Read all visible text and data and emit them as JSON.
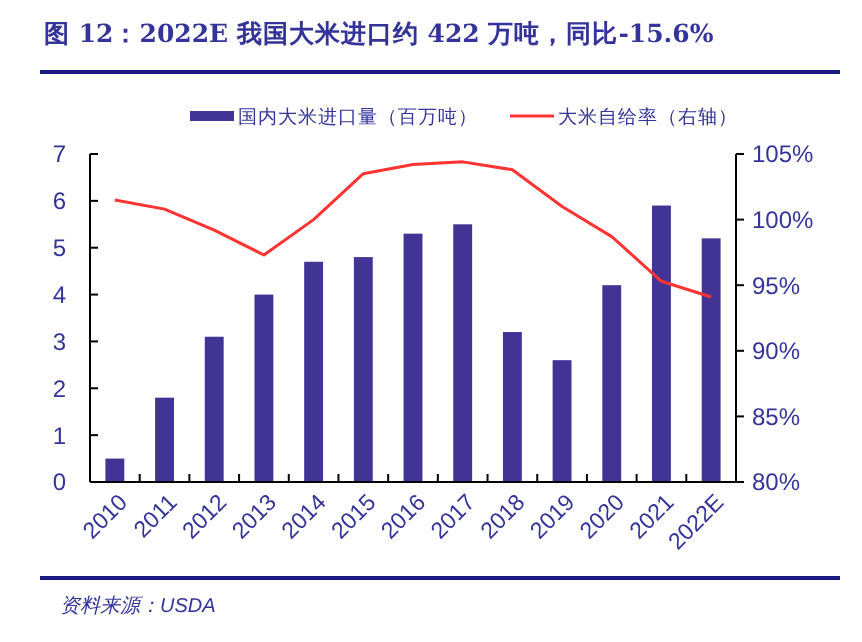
{
  "chart_data": {
    "type": "bar",
    "title": "图 12：2022E 我国大米进口约 422 万吨，同比-15.6%",
    "annotations": [
      "资料来源：USDA"
    ],
    "categories": [
      "2010",
      "2011",
      "2012",
      "2013",
      "2014",
      "2015",
      "2016",
      "2017",
      "2018",
      "2019",
      "2020",
      "2021",
      "2022E"
    ],
    "series": [
      {
        "name": "国内大米进口量（百万吨）",
        "color": "#413494",
        "values": [
          0.5,
          1.8,
          3.1,
          4.0,
          4.7,
          4.8,
          5.3,
          5.5,
          3.2,
          2.6,
          4.2,
          5.9,
          5.2
        ]
      },
      {
        "name": "大米自给率（右轴）",
        "type": "line",
        "axis": "y2",
        "color": "#ff3333",
        "values": [
          101.5,
          100.8,
          99.2,
          97.3,
          100,
          103.5,
          104.2,
          104.4,
          103.8,
          101,
          98.7,
          95.3,
          94.1
        ]
      }
    ],
    "ylim": [
      0,
      7
    ],
    "yticks": [
      0,
      1,
      2,
      3,
      4,
      5,
      6,
      7
    ],
    "y2lim": [
      80,
      105
    ],
    "y2ticks": [
      {
        "value": 80,
        "label": "80%"
      },
      {
        "value": 85,
        "label": "85%"
      },
      {
        "value": 90,
        "label": "90%"
      },
      {
        "value": 95,
        "label": "95%"
      },
      {
        "value": 100,
        "label": "100%"
      },
      {
        "value": 105,
        "label": "105%"
      }
    ],
    "legend": "top",
    "grid": false
  }
}
